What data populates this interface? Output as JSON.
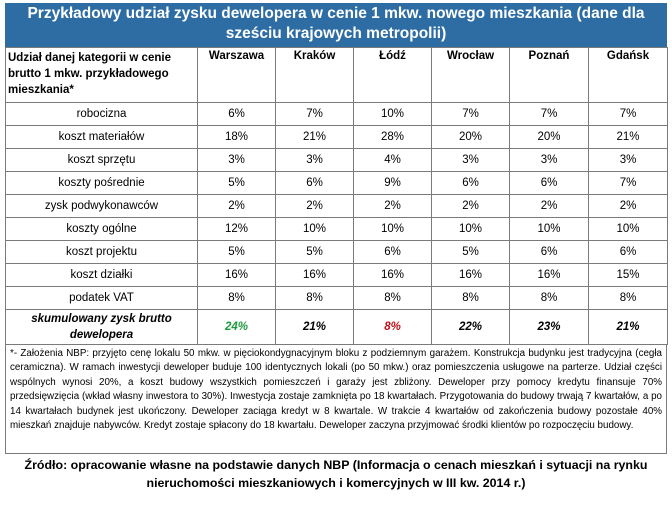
{
  "title": "Przykładowy udział zysku dewelopera w cenie 1 mkw. nowego mieszkania (dane dla sześciu krajowych metropolii)",
  "table": {
    "header_label": "Udział danej kategorii w cenie brutto 1 mkw. przykładowego mieszkania*",
    "cities": [
      "Warszawa",
      "Kraków",
      "Łódź",
      "Wrocław",
      "Poznań",
      "Gdańsk"
    ],
    "rows": [
      {
        "label": "robocizna",
        "values": [
          "6%",
          "7%",
          "10%",
          "7%",
          "7%",
          "7%"
        ]
      },
      {
        "label": "koszt materiałów",
        "values": [
          "18%",
          "21%",
          "28%",
          "20%",
          "20%",
          "21%"
        ]
      },
      {
        "label": "koszt sprzętu",
        "values": [
          "3%",
          "3%",
          "4%",
          "3%",
          "3%",
          "3%"
        ]
      },
      {
        "label": "koszty pośrednie",
        "values": [
          "5%",
          "6%",
          "9%",
          "6%",
          "6%",
          "7%"
        ]
      },
      {
        "label": "zysk podwykonawców",
        "values": [
          "2%",
          "2%",
          "2%",
          "2%",
          "2%",
          "2%"
        ]
      },
      {
        "label": "koszty ogólne",
        "values": [
          "12%",
          "10%",
          "10%",
          "10%",
          "10%",
          "10%"
        ]
      },
      {
        "label": "koszt projektu",
        "values": [
          "5%",
          "5%",
          "6%",
          "5%",
          "6%",
          "6%"
        ]
      },
      {
        "label": "koszt działki",
        "values": [
          "16%",
          "16%",
          "16%",
          "16%",
          "16%",
          "15%"
        ]
      },
      {
        "label": "podatek VAT",
        "values": [
          "8%",
          "8%",
          "8%",
          "8%",
          "8%",
          "8%"
        ]
      }
    ],
    "summary": {
      "label": "skumulowany zysk brutto dewelopera",
      "values": [
        "24%",
        "21%",
        "8%",
        "22%",
        "23%",
        "21%"
      ]
    }
  },
  "colors": {
    "header_bg": "#2e6da4",
    "highlight_high": "#1e9b3c",
    "highlight_low": "#c0121c"
  },
  "note": "*- Założenia NBP: przyjęto cenę lokalu 50 mkw. w pięciokondygnacyjnym bloku z podziemnym garażem. Konstrukcja budynku jest tradycyjna (cegła ceramiczna). W ramach inwestycji deweloper buduje 100 identycznych lokali (po 50 mkw.) oraz pomieszczenia usługowe na parterze. Udział części wspólnych wynosi 20%, a koszt budowy wszystkich pomieszczeń i garaży jest zbliżony. Deweloper przy pomocy kredytu finansuje 70% przedsięwzięcia (wkład własny inwestora to 30%). Inwestycja zostaje zamknięta po 18 kwartałach. Przygotowania do budowy trwają 7 kwartałów, a po 14 kwartałach budynek jest ukończony. Deweloper zaciąga kredyt w 8 kwartale. W trakcie 4 kwartałów od zakończenia budowy pozostałe 40% mieszkań znajduje nabywców. Kredyt zostaje spłacony do 18 kwartału. Deweloper zaczyna przyjmować środki klientów po rozpoczęciu budowy.",
  "source": "Źródło: opracowanie własne na podstawie danych NBP (Informacja o cenach mieszkań i sytuacji na rynku nieruchomości mieszkaniowych i komercyjnych w III kw. 2014 r.)"
}
